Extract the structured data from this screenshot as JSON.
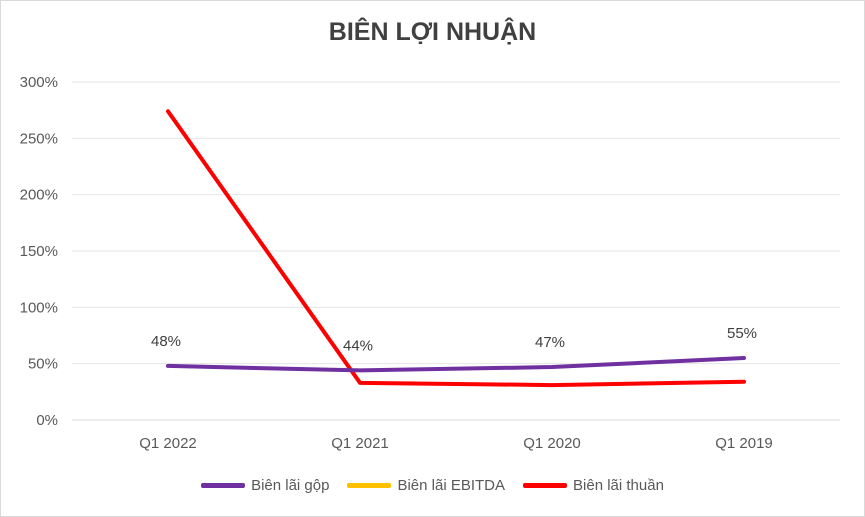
{
  "chart_data": {
    "type": "line",
    "title": "BIÊN LỢI NHUẬN",
    "categories": [
      "Q1 2022",
      "Q1 2021",
      "Q1 2020",
      "Q1 2019"
    ],
    "ylim": [
      0,
      3
    ],
    "yticks": [
      0,
      0.5,
      1,
      1.5,
      2,
      2.5,
      3
    ],
    "ytick_labels": [
      "0%",
      "50%",
      "100%",
      "150%",
      "200%",
      "250%",
      "300%"
    ],
    "grid": true,
    "legend_position": "bottom",
    "series": [
      {
        "name": "Biên lãi gộp",
        "color": "#7030a0",
        "values": [
          0.48,
          0.44,
          0.47,
          0.55
        ],
        "data_labels": [
          "48%",
          "44%",
          "47%",
          "55%"
        ]
      },
      {
        "name": "Biên lãi EBITDA",
        "color": "#ffc000",
        "values": [
          null,
          null,
          null,
          null
        ],
        "data_labels": []
      },
      {
        "name": "Biên lãi thuần",
        "color": "#ff0000",
        "values": [
          2.74,
          0.33,
          0.31,
          0.34
        ],
        "data_labels": []
      }
    ]
  }
}
